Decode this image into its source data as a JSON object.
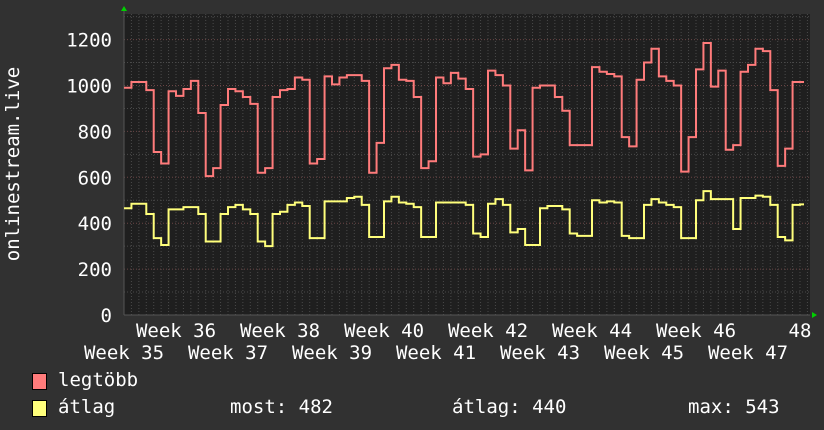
{
  "chart_data": {
    "type": "line",
    "style": "step",
    "ylabel": "onlinestream.live",
    "xlabel": "",
    "ylim": [
      0,
      1300
    ],
    "yticks": [
      0,
      200,
      400,
      600,
      800,
      1000,
      1200
    ],
    "xlim_weeks": [
      35,
      48.2
    ],
    "xtick_labels": [
      "Week 35",
      "Week 36",
      "Week 37",
      "Week 38",
      "Week 39",
      "Week 40",
      "Week 41",
      "Week 42",
      "Week 43",
      "Week 44",
      "Week 45",
      "Week 46",
      "Week 47",
      "48"
    ],
    "sampling": "daily",
    "grid": true,
    "legend_placement": "bottom-left",
    "background": "#1f1f1f",
    "series": [
      {
        "name": "legtöbb",
        "color": "#ff7b7b",
        "values": [
          990,
          1015,
          1015,
          980,
          710,
          660,
          975,
          955,
          985,
          1020,
          880,
          605,
          640,
          915,
          985,
          975,
          950,
          920,
          620,
          640,
          950,
          980,
          985,
          1035,
          1025,
          660,
          680,
          1040,
          1005,
          1035,
          1045,
          1045,
          1020,
          620,
          750,
          1075,
          1090,
          1025,
          1020,
          950,
          640,
          670,
          1035,
          1010,
          1055,
          1030,
          985,
          690,
          700,
          1065,
          1045,
          1000,
          725,
          805,
          630,
          990,
          1000,
          1000,
          950,
          890,
          740,
          740,
          740,
          1080,
          1060,
          1050,
          1040,
          775,
          735,
          1025,
          1100,
          1160,
          1040,
          1020,
          1000,
          625,
          775,
          1070,
          1185,
          995,
          1065,
          720,
          740,
          1060,
          1090,
          1160,
          1150,
          980,
          650,
          725,
          1015,
          1015
        ]
      },
      {
        "name": "átlag",
        "color": "#ffff7b",
        "values": [
          465,
          485,
          485,
          440,
          335,
          305,
          460,
          460,
          470,
          470,
          440,
          320,
          320,
          440,
          470,
          480,
          460,
          440,
          320,
          300,
          440,
          450,
          480,
          490,
          475,
          335,
          335,
          495,
          495,
          495,
          510,
          515,
          480,
          340,
          340,
          495,
          515,
          490,
          485,
          470,
          340,
          340,
          490,
          490,
          490,
          490,
          480,
          355,
          340,
          485,
          505,
          480,
          360,
          375,
          305,
          305,
          465,
          475,
          475,
          460,
          355,
          345,
          345,
          500,
          490,
          495,
          490,
          345,
          335,
          335,
          480,
          505,
          490,
          480,
          470,
          335,
          335,
          500,
          540,
          505,
          505,
          505,
          375,
          510,
          510,
          520,
          515,
          480,
          340,
          325,
          480,
          482
        ]
      }
    ]
  },
  "legend": {
    "items": [
      {
        "label": "legtöbb",
        "color": "#ff7b7b"
      },
      {
        "label": "átlag",
        "color": "#ffff7b"
      }
    ],
    "stats": {
      "most": "most: 482",
      "atlag": "átlag: 440",
      "max": "max: 543"
    }
  }
}
